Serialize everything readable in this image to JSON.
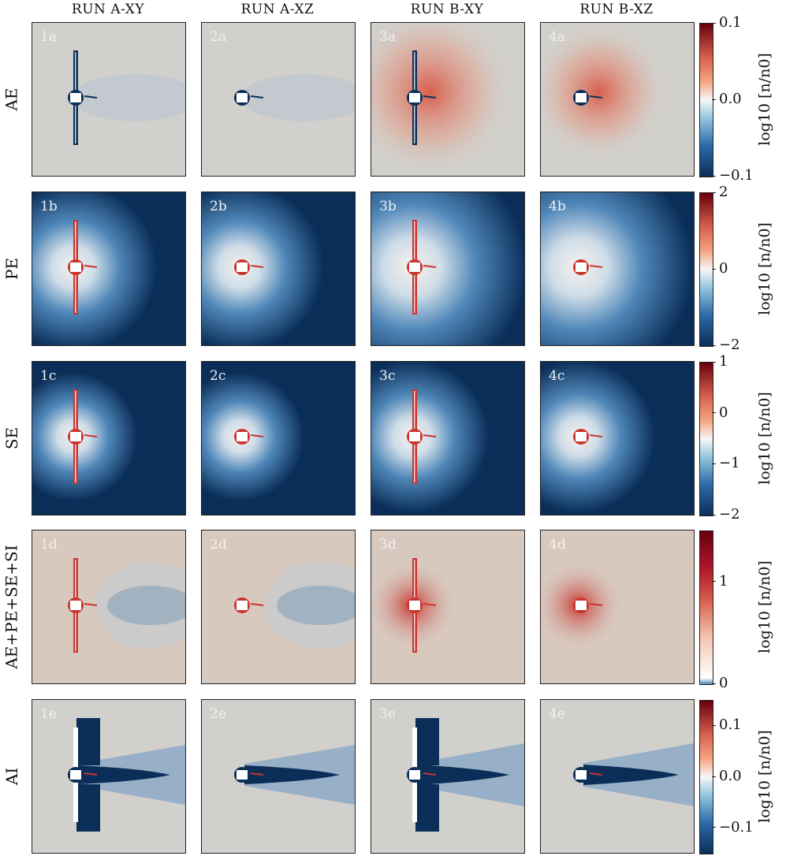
{
  "columns": [
    "RUN A-XY",
    "RUN A-XZ",
    "RUN B-XY",
    "RUN B-XZ"
  ],
  "rows": [
    {
      "label": "AE",
      "panels": [
        "1a",
        "2a",
        "3a",
        "4a"
      ],
      "colorbar": {
        "label": "log10 [n/n0]",
        "ticks": [
          "0.1",
          "0.0",
          "−0.1"
        ],
        "range": [
          -0.1,
          0.1
        ],
        "scale": "diverging"
      }
    },
    {
      "label": "PE",
      "panels": [
        "1b",
        "2b",
        "3b",
        "4b"
      ],
      "colorbar": {
        "label": "log10 [n/n0]",
        "ticks": [
          "2",
          "0",
          "−2"
        ],
        "range": [
          -2,
          2
        ],
        "scale": "diverging"
      }
    },
    {
      "label": "SE",
      "panels": [
        "1c",
        "2c",
        "3c",
        "4c"
      ],
      "colorbar": {
        "label": "log10 [n/n0]",
        "ticks": [
          "1",
          "0",
          "−1",
          "−2"
        ],
        "range": [
          -2,
          1
        ],
        "scale": "diverging"
      }
    },
    {
      "label": "AE+PE+SE+SI",
      "panels": [
        "1d",
        "2d",
        "3d",
        "4d"
      ],
      "colorbar": {
        "label": "log10 [n/n0]",
        "ticks": [
          "1",
          "0"
        ],
        "range": [
          0,
          1.5
        ],
        "scale": "sequential"
      }
    },
    {
      "label": "AI",
      "panels": [
        "1e",
        "2e",
        "3e",
        "4e"
      ],
      "colorbar": {
        "label": "log10 [n/n0]",
        "ticks": [
          "0.1",
          "0.0",
          "−0.1"
        ],
        "range": [
          -0.15,
          0.15
        ],
        "scale": "diverging"
      }
    }
  ],
  "colors": {
    "deep_blue": "#0b2e59",
    "mid_blue": "#4f87b8",
    "neutral": "#d2d0cc",
    "light": "#f6f1ec",
    "red": "#c9352f",
    "dark_red": "#67000d"
  },
  "chart_data": {
    "type": "heatmap",
    "layout": "5x4 grid of density maps",
    "colormap": "RdBu_r",
    "colorbar_label": "log10 [n/n0]"
  }
}
